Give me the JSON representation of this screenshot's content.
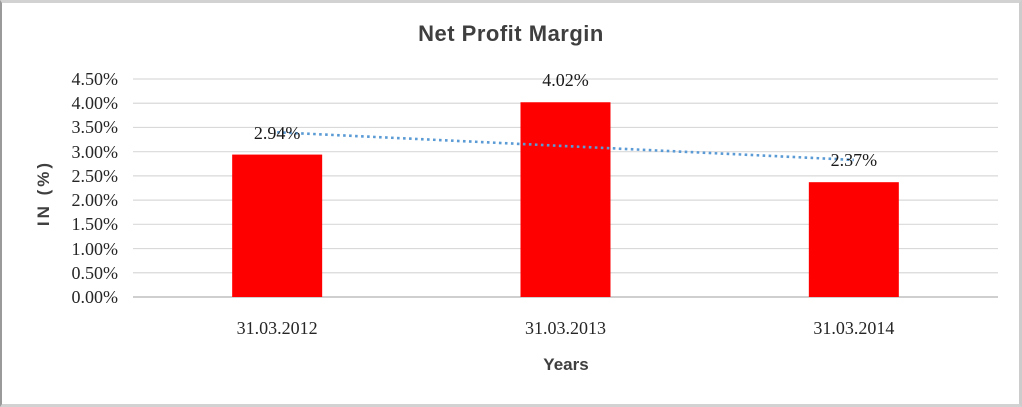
{
  "chart_data": {
    "type": "bar",
    "title": "Net Profit Margin",
    "xlabel": "Years",
    "ylabel": "IN (%)",
    "categories": [
      "31.03.2012",
      "31.03.2013",
      "31.03.2014"
    ],
    "values": [
      2.94,
      4.02,
      2.37
    ],
    "data_labels": [
      "2.94%",
      "4.02%",
      "2.37%"
    ],
    "y_ticks": [
      "4.50%",
      "4.00%",
      "3.50%",
      "3.00%",
      "2.50%",
      "2.00%",
      "1.50%",
      "1.00%",
      "0.50%",
      "0.00%"
    ],
    "y_tick_values": [
      4.5,
      4.0,
      3.5,
      3.0,
      2.5,
      2.0,
      1.5,
      1.0,
      0.5,
      0.0
    ],
    "ylim": [
      0,
      4.5
    ],
    "grid": true,
    "legend_position": "none",
    "trendline": {
      "type": "linear",
      "style": "dotted",
      "start_value": 3.4,
      "end_value": 2.83
    },
    "colors": {
      "bar": "#FF0000",
      "trendline": "#5B9BD5",
      "gridline": "#D9D9D9",
      "axis_line": "#BFBFBF",
      "title_text": "#3F3F3F",
      "label_text": "#262626"
    }
  }
}
